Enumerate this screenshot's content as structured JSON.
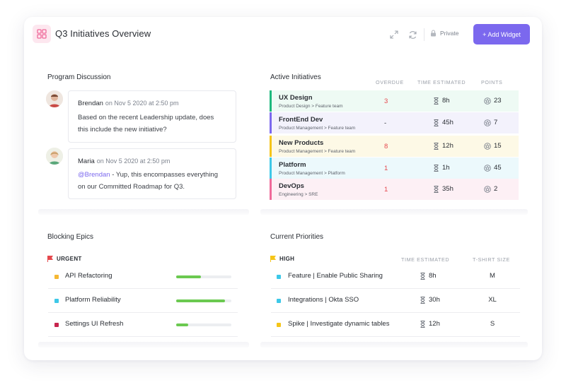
{
  "header": {
    "title": "Q3 Initiatives Overview",
    "privacy_label": "Private",
    "add_widget_label": "+ Add Widget",
    "icons": [
      "grid-icon",
      "expand-icon",
      "refresh-icon",
      "lock-icon"
    ],
    "accent": "#7b68ee"
  },
  "discussion": {
    "title": "Program Discussion",
    "comments": [
      {
        "author": "Brendan",
        "meta": "on Nov 5 2020 at 2:50 pm",
        "line1": "Based on the recent Leadership update, does",
        "line2": "this include the new initiative?"
      },
      {
        "author": "Maria",
        "meta": "on Nov 5 2020 at 2:50 pm",
        "mention": "@Brendan",
        "line1_rest": " - Yup, this encompasses everything",
        "line2": "on our Committed Roadmap for Q3."
      }
    ]
  },
  "initiatives": {
    "title": "Active Initiatives",
    "columns": {
      "overdue": "OVERDUE",
      "time": "TIME ESTIMATED",
      "points": "POINTS"
    },
    "rows": [
      {
        "name": "UX Design",
        "sub": "Product Design > Feature team",
        "overdue": "3",
        "time": "8h",
        "points": "23",
        "color": "#1db87d",
        "bg": "#eefaf4",
        "overdue_color": "#e5484d"
      },
      {
        "name": "FrontEnd Dev",
        "sub": "Product Management > Feature team",
        "overdue": "-",
        "time": "45h",
        "points": "7",
        "color": "#7b68ee",
        "bg": "#f3f2fc",
        "overdue_color": "#2a2e34"
      },
      {
        "name": "New Products",
        "sub": "Product Management > Feature team",
        "overdue": "8",
        "time": "12h",
        "points": "15",
        "color": "#f5c518",
        "bg": "#fdf9e6",
        "overdue_color": "#e5484d"
      },
      {
        "name": "Platform",
        "sub": "Product Management > Platform",
        "overdue": "1",
        "time": "1h",
        "points": "45",
        "color": "#3dc8e8",
        "bg": "#ecf9fc",
        "overdue_color": "#e5484d"
      },
      {
        "name": "DevOps",
        "sub": "Engineering > SRE",
        "overdue": "1",
        "time": "35h",
        "points": "2",
        "color": "#f06a9a",
        "bg": "#fdf0f5",
        "overdue_color": "#e5484d"
      }
    ]
  },
  "epics": {
    "title": "Blocking Epics",
    "group_label": "URGENT",
    "group_color": "#e5484d",
    "rows": [
      {
        "name": "API Refactoring",
        "progress": 0.45,
        "color": "#f5b833"
      },
      {
        "name": "Platform Reliability",
        "progress": 0.88,
        "color": "#3dc8e8"
      },
      {
        "name": "Settings UI Refresh",
        "progress": 0.22,
        "color": "#c7254e"
      }
    ]
  },
  "priorities": {
    "title": "Current Priorities",
    "group_label": "HIGH",
    "group_color": "#f5c518",
    "columns": {
      "time": "TIME ESTIMATED",
      "size": "T-SHIRT SIZE"
    },
    "rows": [
      {
        "name": "Feature | Enable Public Sharing",
        "time": "8h",
        "size": "M",
        "color": "#3dc8e8"
      },
      {
        "name": "Integrations | Okta SSO",
        "time": "30h",
        "size": "XL",
        "color": "#3dc8e8"
      },
      {
        "name": "Spike | Investigate dynamic tables",
        "time": "12h",
        "size": "S",
        "color": "#f5c518"
      }
    ]
  }
}
